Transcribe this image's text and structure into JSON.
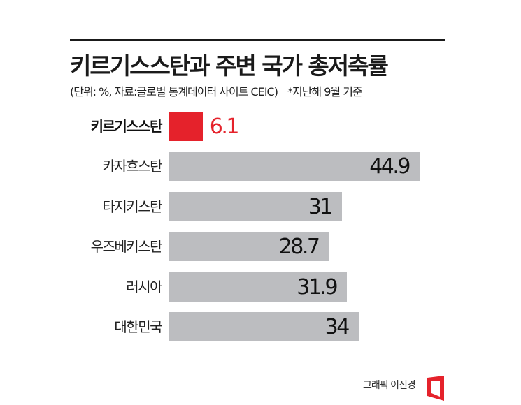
{
  "header": {
    "title": "키르기스스탄과 주변 국가 총저축률",
    "subtitle": "(단위: %, 자료:글로벌 통계데이터 사이트 CEIC)",
    "note": "*지난해 9월 기준"
  },
  "rows": [
    {
      "label": "키르기스스탄",
      "value": "6.1"
    },
    {
      "label": "카자흐스탄",
      "value": "44.9"
    },
    {
      "label": "타지키스탄",
      "value": "31"
    },
    {
      "label": "우즈베키스탄",
      "value": "28.7"
    },
    {
      "label": "러시아",
      "value": "31.9"
    },
    {
      "label": "대한민국",
      "value": "34"
    }
  ],
  "footer": {
    "credit": "그래픽 이진경"
  },
  "colors": {
    "highlight": "#e5222b",
    "bar": "#bcbdc0",
    "rule": "#1a1a1a"
  },
  "chart_data": {
    "type": "bar",
    "orientation": "horizontal",
    "title": "키르기스스탄과 주변 국가 총저축률",
    "subtitle": "(단위: %, 자료:글로벌 통계데이터 사이트 CEIC) *지난해 9월 기준",
    "categories": [
      "키르기스스탄",
      "카자흐스탄",
      "타지키스탄",
      "우즈베키스탄",
      "러시아",
      "대한민국"
    ],
    "values": [
      6.1,
      44.9,
      31,
      28.7,
      31.9,
      34
    ],
    "highlight_index": 0,
    "xlabel": "",
    "ylabel": "",
    "unit": "%",
    "grid": false,
    "legend": null,
    "source": "CEIC"
  }
}
